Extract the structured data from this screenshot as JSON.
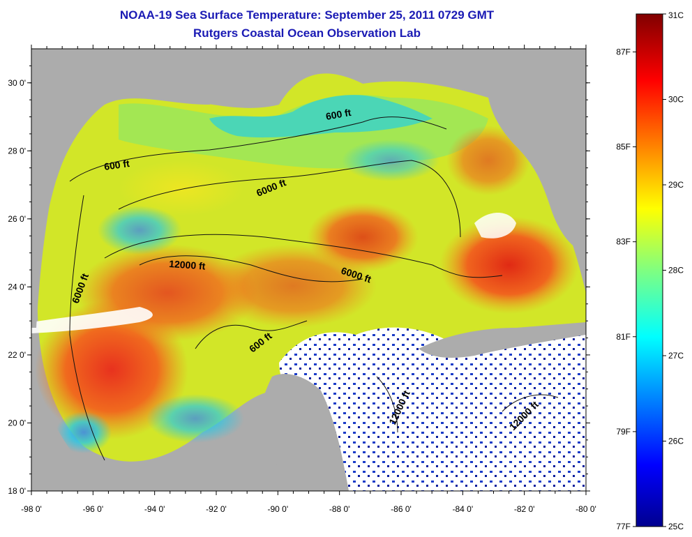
{
  "title": "NOAA-19 Sea Surface Temperature:  September 25, 2011 0729 GMT",
  "subtitle": "Rutgers Coastal Ocean Observation Lab",
  "map": {
    "x_ticks": [
      "-98 0'",
      "-96 0'",
      "-94 0'",
      "-92 0'",
      "-90 0'",
      "-88 0'",
      "-86 0'",
      "-84 0'",
      "-82 0'",
      "-80 0'"
    ],
    "y_ticks": [
      "30 0'",
      "28 0'",
      "26 0'",
      "24 0'",
      "22 0'",
      "20 0'",
      "18 0'"
    ],
    "contour_labels": [
      "600 ft",
      "600 ft",
      "6000 ft",
      "12000 ft",
      "6000 ft",
      "6000 ft",
      "600 ft",
      "12000 ft",
      "12000 ft"
    ],
    "colors": {
      "land": "#acacac",
      "cloud": "#ffffff"
    }
  },
  "colorbar": {
    "celsius": [
      "31C",
      "30C",
      "29C",
      "28C",
      "27C",
      "26C",
      "25C"
    ],
    "fahrenheit": [
      "87F",
      "85F",
      "83F",
      "81F",
      "79F",
      "77F"
    ],
    "min_c": 25,
    "max_c": 31
  }
}
